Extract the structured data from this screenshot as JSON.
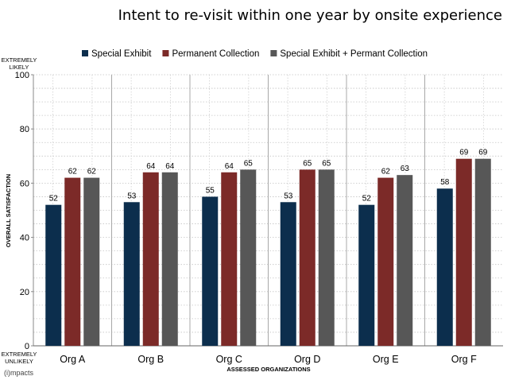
{
  "chart_data": {
    "type": "bar",
    "title": "Intent to re-visit within one year by onsite experience",
    "categories": [
      "Org A",
      "Org B",
      "Org C",
      "Org D",
      "Org E",
      "Org F"
    ],
    "series": [
      {
        "name": "Special Exhibit",
        "color": "#0c2e4d",
        "values": [
          52,
          53,
          55,
          53,
          52,
          58
        ]
      },
      {
        "name": "Permanent Collection",
        "color": "#7c2a28",
        "values": [
          62,
          64,
          64,
          65,
          62,
          69
        ]
      },
      {
        "name": "Special Exhibit + Permant Collection",
        "color": "#575757",
        "values": [
          62,
          64,
          65,
          65,
          63,
          69
        ]
      }
    ],
    "xlabel": "ASSESSED ORGANIZATIONS",
    "ylabel": "OVERALL SATISFACTION",
    "ylim": [
      0,
      100
    ],
    "yticks": [
      0,
      20,
      40,
      60,
      80,
      100
    ],
    "y_top_label": [
      "EXTREMELY",
      "LIKELY"
    ],
    "y_bottom_label": [
      "EXTREMELY",
      "UNLIKELY"
    ],
    "grid": true,
    "legend_position": "top",
    "data_labels": true
  },
  "brand": "(i)mpacts"
}
